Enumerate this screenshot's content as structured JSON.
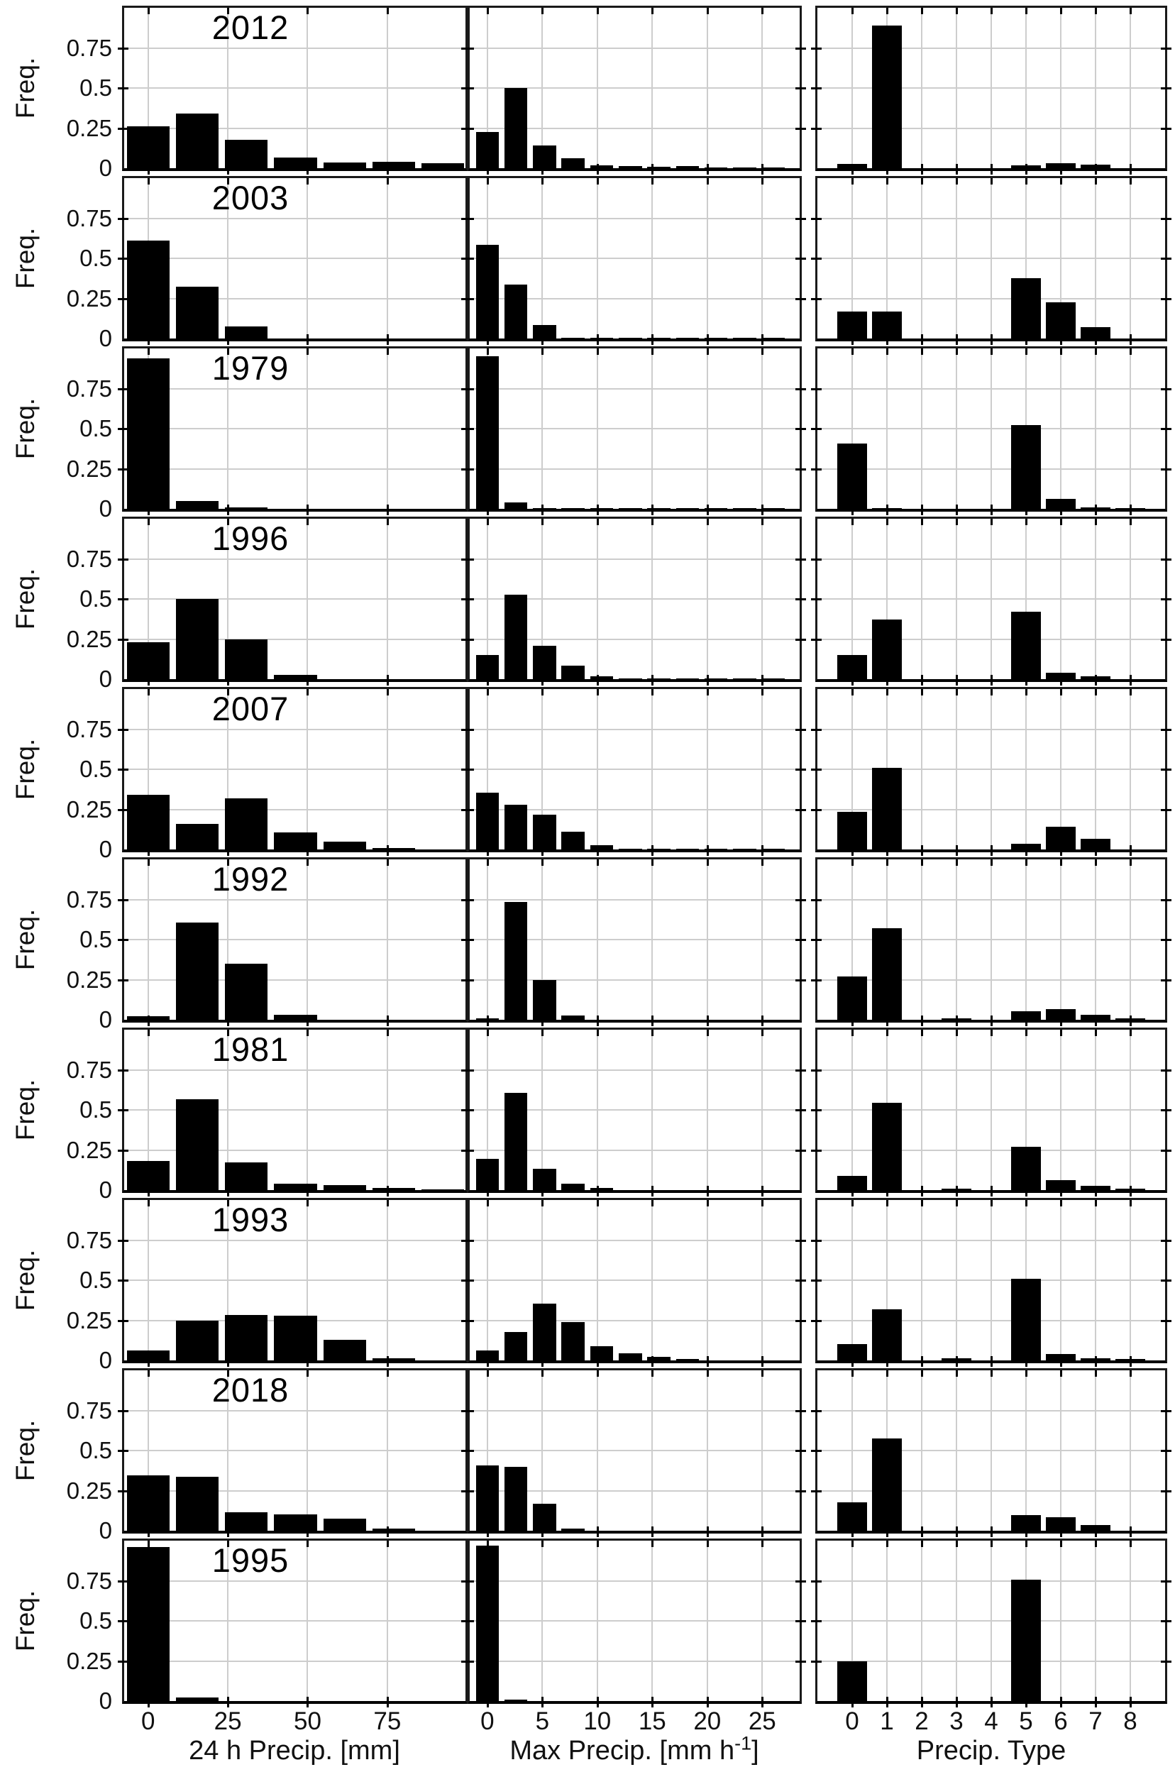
{
  "figure": {
    "ylabel": "Freq.",
    "xlabels": {
      "col1": "24 h Precip. [mm]",
      "col2_pre": "Max Precip. [mm h",
      "col2_sup": "-1",
      "col2_post": "]",
      "col3": "Precip. Type"
    },
    "colors": {
      "bar": "#000000",
      "grid": "#cdcdcd",
      "axis": "#1a1a1a",
      "background": "#ffffff",
      "text": "#111111"
    }
  },
  "chart_data": {
    "type": "bar",
    "ylabel": "Freq.",
    "ylim": [
      0,
      1
    ],
    "ytick_values": [
      0.75,
      0.5,
      0.25,
      0
    ],
    "ytick_labels": [
      "0.75",
      "0.5",
      "0.25",
      "0"
    ],
    "grid": true,
    "columns": [
      {
        "xlabel": "24 h Precip. [mm]",
        "xlim": [
          -7.5,
          99.5
        ],
        "xticks": [
          0,
          25,
          50,
          75
        ],
        "bin_width": 13.4
      },
      {
        "xlabel": "Max Precip. [mm h⁻¹]",
        "xlim": [
          -1.6,
          28.4
        ],
        "xticks": [
          0,
          5,
          10,
          15,
          20,
          25
        ],
        "bin_width": 2.1
      },
      {
        "xlabel": "Precip. Type",
        "xlim": [
          -1,
          9
        ],
        "xticks": [
          0,
          1,
          2,
          3,
          4,
          5,
          6,
          7,
          8
        ],
        "bin_width": 0.85
      }
    ],
    "rows": [
      {
        "year": "2012",
        "panels": [
          {
            "bars": [
              [
                0,
                0.26
              ],
              [
                15.4,
                0.34
              ],
              [
                30.8,
                0.175
              ],
              [
                46.2,
                0.065
              ],
              [
                61.6,
                0.035
              ],
              [
                77,
                0.042
              ],
              [
                92.4,
                0.03
              ]
            ]
          },
          {
            "bars": [
              [
                0,
                0.225
              ],
              [
                2.6,
                0.5
              ],
              [
                5.2,
                0.14
              ],
              [
                7.8,
                0.06
              ],
              [
                10.4,
                0.016
              ],
              [
                13,
                0.012
              ],
              [
                15.6,
                0.008
              ],
              [
                18.2,
                0.012
              ],
              [
                20.8,
                0.006
              ],
              [
                23.4,
                0.004
              ],
              [
                26,
                0.004
              ]
            ]
          },
          {
            "bars": [
              [
                0,
                0.027
              ],
              [
                1,
                0.89
              ],
              [
                5,
                0.016
              ],
              [
                6,
                0.032
              ],
              [
                7,
                0.024
              ]
            ]
          }
        ]
      },
      {
        "year": "2003",
        "panels": [
          {
            "bars": [
              [
                0,
                0.61
              ],
              [
                15.4,
                0.325
              ],
              [
                30.8,
                0.076
              ]
            ]
          },
          {
            "bars": [
              [
                0,
                0.585
              ],
              [
                2.6,
                0.335
              ],
              [
                5.2,
                0.083
              ],
              [
                7.8,
                0.004
              ],
              [
                10.4,
                0.004
              ],
              [
                13,
                0.004
              ],
              [
                15.6,
                0.004
              ],
              [
                18.2,
                0.004
              ],
              [
                20.8,
                0.004
              ],
              [
                23.4,
                0.004
              ],
              [
                26,
                0.004
              ]
            ]
          },
          {
            "bars": [
              [
                0,
                0.17
              ],
              [
                1,
                0.17
              ],
              [
                5,
                0.375
              ],
              [
                6,
                0.225
              ],
              [
                7,
                0.07
              ]
            ]
          }
        ]
      },
      {
        "year": "1979",
        "panels": [
          {
            "bars": [
              [
                0,
                0.94
              ],
              [
                15.4,
                0.05
              ],
              [
                30.8,
                0.008
              ]
            ]
          },
          {
            "bars": [
              [
                0,
                0.95
              ],
              [
                2.6,
                0.04
              ],
              [
                5.2,
                0.005
              ],
              [
                7.8,
                0.005
              ],
              [
                10.4,
                0.005
              ],
              [
                13,
                0.005
              ],
              [
                15.6,
                0.005
              ],
              [
                18.2,
                0.005
              ],
              [
                20.8,
                0.005
              ],
              [
                23.4,
                0.005
              ],
              [
                26,
                0.005
              ]
            ]
          },
          {
            "bars": [
              [
                0,
                0.405
              ],
              [
                1,
                0.006
              ],
              [
                5,
                0.52
              ],
              [
                6,
                0.063
              ],
              [
                7,
                0.008
              ],
              [
                8,
                0.005
              ]
            ]
          }
        ]
      },
      {
        "year": "1996",
        "panels": [
          {
            "bars": [
              [
                0,
                0.23
              ],
              [
                15.4,
                0.5
              ],
              [
                30.8,
                0.25
              ],
              [
                46.2,
                0.028
              ]
            ]
          },
          {
            "bars": [
              [
                0,
                0.15
              ],
              [
                2.6,
                0.525
              ],
              [
                5.2,
                0.21
              ],
              [
                7.8,
                0.085
              ],
              [
                10.4,
                0.018
              ],
              [
                13,
                0.006
              ],
              [
                15.6,
                0.006
              ],
              [
                18.2,
                0.006
              ],
              [
                20.8,
                0.004
              ],
              [
                23.4,
                0.006
              ],
              [
                26,
                0.004
              ]
            ]
          },
          {
            "bars": [
              [
                0,
                0.15
              ],
              [
                1,
                0.37
              ],
              [
                5,
                0.42
              ],
              [
                6,
                0.042
              ],
              [
                7,
                0.018
              ]
            ]
          }
        ]
      },
      {
        "year": "2007",
        "panels": [
          {
            "bars": [
              [
                0,
                0.34
              ],
              [
                15.4,
                0.16
              ],
              [
                30.8,
                0.32
              ],
              [
                46.2,
                0.108
              ],
              [
                61.6,
                0.048
              ],
              [
                77,
                0.008
              ]
            ]
          },
          {
            "bars": [
              [
                0,
                0.355
              ],
              [
                2.6,
                0.278
              ],
              [
                5.2,
                0.215
              ],
              [
                7.8,
                0.11
              ],
              [
                10.4,
                0.026
              ],
              [
                13,
                0.006
              ],
              [
                15.6,
                0.005
              ],
              [
                18.2,
                0.004
              ],
              [
                20.8,
                0.004
              ],
              [
                23.4,
                0.004
              ],
              [
                26,
                0.003
              ]
            ]
          },
          {
            "bars": [
              [
                0,
                0.235
              ],
              [
                1,
                0.51
              ],
              [
                5,
                0.035
              ],
              [
                6,
                0.143
              ],
              [
                7,
                0.065
              ]
            ]
          }
        ]
      },
      {
        "year": "1992",
        "panels": [
          {
            "bars": [
              [
                0,
                0.022
              ],
              [
                15.4,
                0.605
              ],
              [
                30.8,
                0.35
              ],
              [
                46.2,
                0.033
              ]
            ]
          },
          {
            "bars": [
              [
                0,
                0.008
              ],
              [
                2.6,
                0.735
              ],
              [
                5.2,
                0.248
              ],
              [
                7.8,
                0.025
              ]
            ]
          },
          {
            "bars": [
              [
                0,
                0.27
              ],
              [
                1,
                0.57
              ],
              [
                3,
                0.008
              ],
              [
                5,
                0.053
              ],
              [
                6,
                0.068
              ],
              [
                7,
                0.033
              ],
              [
                8,
                0.008
              ]
            ]
          }
        ]
      },
      {
        "year": "1981",
        "panels": [
          {
            "bars": [
              [
                0,
                0.18
              ],
              [
                15.4,
                0.565
              ],
              [
                30.8,
                0.172
              ],
              [
                46.2,
                0.04
              ],
              [
                61.6,
                0.03
              ],
              [
                77,
                0.013
              ],
              [
                92.4,
                0.005
              ]
            ]
          },
          {
            "bars": [
              [
                0,
                0.193
              ],
              [
                2.6,
                0.608
              ],
              [
                5.2,
                0.135
              ],
              [
                7.8,
                0.042
              ],
              [
                10.4,
                0.015
              ]
            ]
          },
          {
            "bars": [
              [
                0,
                0.088
              ],
              [
                1,
                0.545
              ],
              [
                3,
                0.008
              ],
              [
                5,
                0.268
              ],
              [
                6,
                0.062
              ],
              [
                7,
                0.026
              ],
              [
                8,
                0.008
              ]
            ]
          }
        ]
      },
      {
        "year": "1993",
        "panels": [
          {
            "bars": [
              [
                0,
                0.062
              ],
              [
                15.4,
                0.25
              ],
              [
                30.8,
                0.283
              ],
              [
                46.2,
                0.278
              ],
              [
                61.6,
                0.127
              ],
              [
                77,
                0.012
              ]
            ]
          },
          {
            "bars": [
              [
                0,
                0.064
              ],
              [
                2.6,
                0.175
              ],
              [
                5.2,
                0.355
              ],
              [
                7.8,
                0.238
              ],
              [
                10.4,
                0.088
              ],
              [
                13,
                0.044
              ],
              [
                15.6,
                0.02
              ],
              [
                18.2,
                0.007
              ]
            ]
          },
          {
            "bars": [
              [
                0,
                0.104
              ],
              [
                1,
                0.32
              ],
              [
                3,
                0.013
              ],
              [
                5,
                0.51
              ],
              [
                6,
                0.04
              ],
              [
                7,
                0.013
              ],
              [
                8,
                0.009
              ]
            ]
          }
        ]
      },
      {
        "year": "2018",
        "panels": [
          {
            "bars": [
              [
                0,
                0.345
              ],
              [
                15.4,
                0.337
              ],
              [
                30.8,
                0.113
              ],
              [
                46.2,
                0.1
              ],
              [
                61.6,
                0.077
              ],
              [
                77,
                0.012
              ]
            ]
          },
          {
            "bars": [
              [
                0,
                0.405
              ],
              [
                2.6,
                0.397
              ],
              [
                5.2,
                0.168
              ],
              [
                7.8,
                0.012
              ]
            ]
          },
          {
            "bars": [
              [
                0,
                0.175
              ],
              [
                1,
                0.575
              ],
              [
                5,
                0.097
              ],
              [
                6,
                0.085
              ],
              [
                7,
                0.036
              ]
            ]
          }
        ]
      },
      {
        "year": "1995",
        "panels": [
          {
            "bars": [
              [
                0,
                0.96
              ],
              [
                15.4,
                0.02
              ]
            ]
          },
          {
            "bars": [
              [
                0,
                0.97
              ],
              [
                2.6,
                0.008
              ]
            ]
          },
          {
            "bars": [
              [
                0,
                0.25
              ],
              [
                5,
                0.755
              ]
            ]
          }
        ]
      }
    ]
  }
}
